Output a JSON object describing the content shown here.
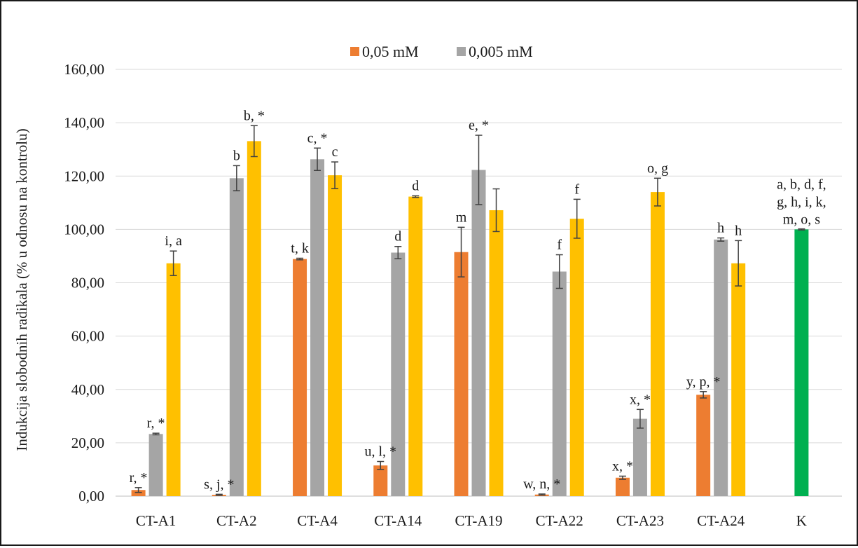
{
  "chart_data": {
    "type": "bar",
    "title": "",
    "xlabel": "",
    "ylabel": "Indukcija slobodnih radikala (% u odnosu na kontrolu)",
    "ylim": [
      0,
      160
    ],
    "ytick_values": [
      0,
      20,
      40,
      60,
      80,
      100,
      120,
      140,
      160
    ],
    "ytick_labels": [
      "0,00",
      "20,00",
      "40,00",
      "60,00",
      "80,00",
      "100,00",
      "120,00",
      "140,00",
      "160,00"
    ],
    "grid": true,
    "legend_position": "top-center",
    "categories": [
      "CT-A1",
      "CT-A2",
      "CT-A4",
      "CT-A14",
      "CT-A19",
      "CT-A22",
      "CT-A23",
      "CT-A24",
      "K"
    ],
    "series": [
      {
        "name": "0,05 mM",
        "color": "#ed7d31",
        "values": [
          2.3,
          0.5,
          88.9,
          11.5,
          91.5,
          0.6,
          6.9,
          38.0,
          null
        ],
        "errors": [
          0.9,
          0.2,
          0.3,
          1.5,
          9.3,
          0.2,
          0.6,
          1.2,
          null
        ],
        "labels": [
          "r, *",
          "s, j, *",
          "t, k",
          "u, l, *",
          "m",
          "w, n, *",
          "x, *",
          "y, p, *",
          ""
        ]
      },
      {
        "name": "0,005 mM",
        "color": "#a5a5a5",
        "values": [
          23.3,
          119.2,
          126.3,
          91.3,
          122.3,
          84.2,
          29.0,
          96.2,
          null
        ],
        "errors": [
          0.3,
          4.7,
          4.2,
          2.3,
          13.0,
          6.3,
          3.5,
          0.6,
          null
        ],
        "labels": [
          "r, *",
          "b",
          "c, *",
          "d",
          "e, *",
          "f",
          "x, *",
          "h",
          ""
        ]
      },
      {
        "name": "",
        "color": "#ffc000",
        "values": [
          87.3,
          133.1,
          120.3,
          112.3,
          107.2,
          104.0,
          114.0,
          87.3,
          null
        ],
        "errors": [
          4.6,
          5.8,
          5.0,
          0.3,
          8.0,
          7.3,
          5.2,
          8.5,
          null
        ],
        "labels": [
          "i, a",
          "b, *",
          "c",
          "d",
          "",
          "f",
          "o, g",
          "h",
          ""
        ]
      },
      {
        "name": "",
        "color": "#00b050",
        "values": [
          null,
          null,
          null,
          null,
          null,
          null,
          null,
          null,
          100.0
        ],
        "errors": [
          null,
          null,
          null,
          null,
          null,
          null,
          null,
          null,
          0.2
        ],
        "labels": [
          "",
          "",
          "",
          "",
          "",
          "",
          "",
          "",
          ""
        ]
      }
    ],
    "control_label_lines": [
      "a, b, d, f,",
      "g, h, i, k,",
      "m, o, s"
    ]
  }
}
